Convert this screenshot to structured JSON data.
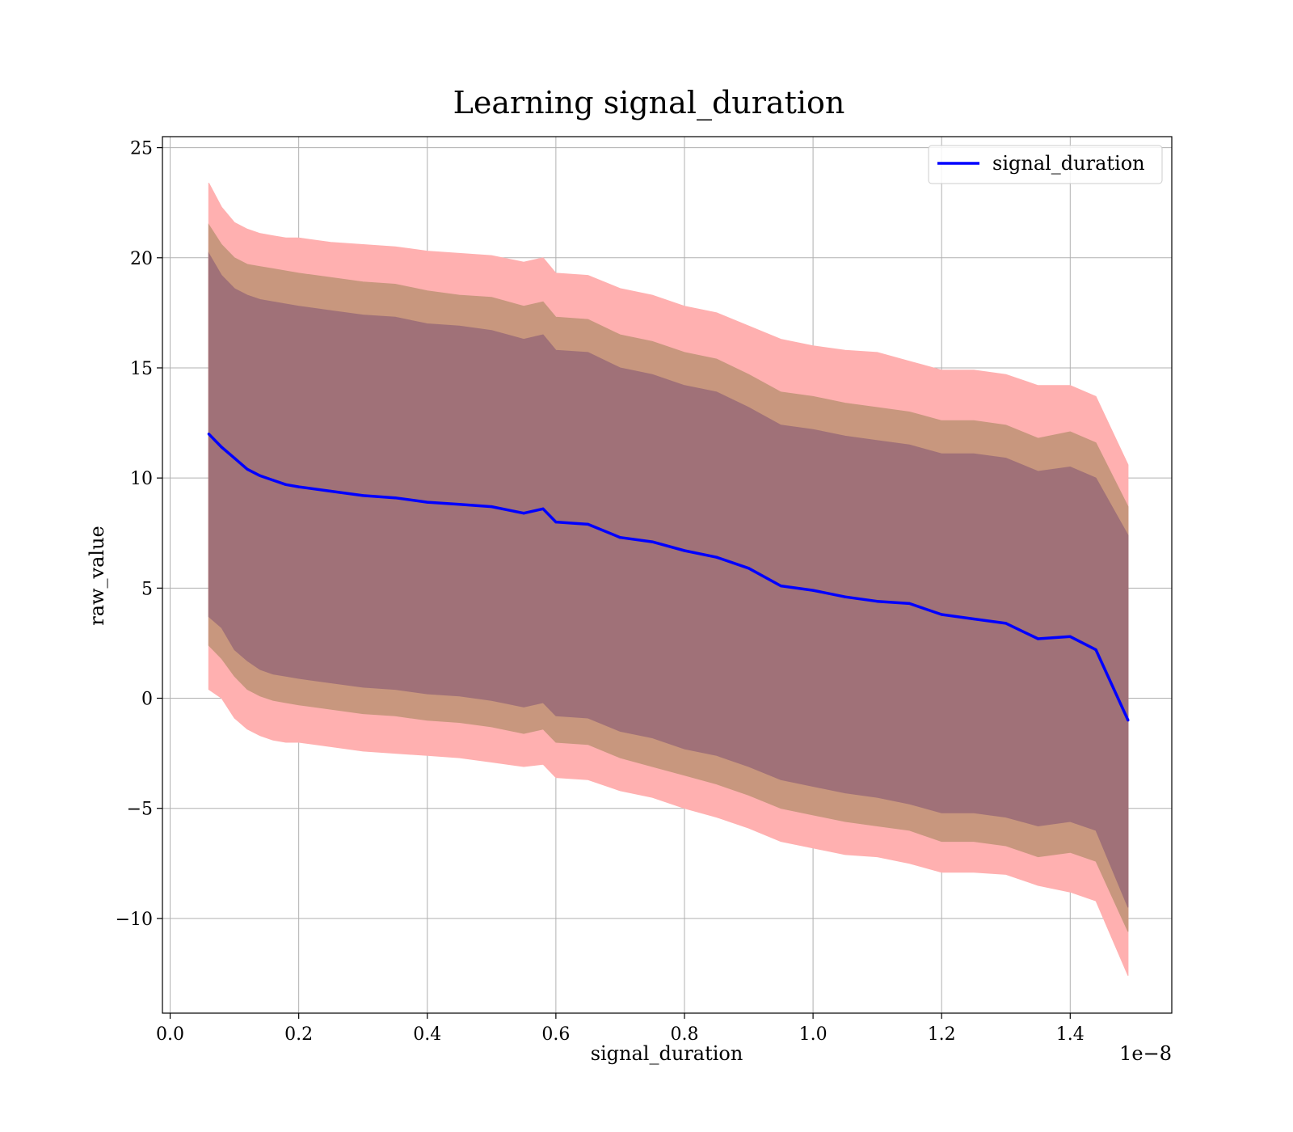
{
  "chart_data": {
    "type": "line",
    "title": "Learning signal_duration",
    "xlabel": "signal_duration",
    "ylabel": "raw_value",
    "x_offset_label": "1e−8",
    "xlim": [
      -0.012,
      1.558
    ],
    "ylim": [
      -14.3,
      25.5
    ],
    "grid": true,
    "legend_position": "top-right",
    "x_ticks": [
      0.0,
      0.2,
      0.4,
      0.6,
      0.8,
      1.0,
      1.2,
      1.4
    ],
    "x_tick_labels": [
      "0.0",
      "0.2",
      "0.4",
      "0.6",
      "0.8",
      "1.0",
      "1.2",
      "1.4"
    ],
    "y_ticks": [
      25,
      20,
      15,
      10,
      5,
      0,
      -5,
      -10
    ],
    "y_tick_labels": [
      "25",
      "20",
      "15",
      "10",
      "5",
      "0",
      "−5",
      "−10"
    ],
    "colors": {
      "line": "#0000ff",
      "band_outer": "#ffb0b0",
      "band_middle": "#c8977e",
      "band_inner": "#a07178",
      "grid": "#b0b0b0"
    },
    "series": [
      {
        "name": "signal_duration",
        "x": [
          0.06,
          0.08,
          0.1,
          0.12,
          0.14,
          0.16,
          0.18,
          0.2,
          0.25,
          0.3,
          0.35,
          0.4,
          0.45,
          0.5,
          0.55,
          0.58,
          0.6,
          0.65,
          0.7,
          0.75,
          0.8,
          0.85,
          0.9,
          0.95,
          1.0,
          1.05,
          1.1,
          1.15,
          1.2,
          1.25,
          1.3,
          1.35,
          1.4,
          1.44,
          1.49
        ],
        "y": [
          12.0,
          11.4,
          10.9,
          10.4,
          10.1,
          9.9,
          9.7,
          9.6,
          9.4,
          9.2,
          9.1,
          8.9,
          8.8,
          8.7,
          8.4,
          8.6,
          8.0,
          7.9,
          7.3,
          7.1,
          6.7,
          6.4,
          5.9,
          5.1,
          4.9,
          4.6,
          4.4,
          4.3,
          3.8,
          3.6,
          3.4,
          2.7,
          2.8,
          2.2,
          -1.0
        ]
      }
    ],
    "bands": [
      {
        "upper": [
          23.4,
          22.3,
          21.6,
          21.3,
          21.1,
          21.0,
          20.9,
          20.9,
          20.7,
          20.6,
          20.5,
          20.3,
          20.2,
          20.1,
          19.8,
          20.0,
          19.3,
          19.2,
          18.6,
          18.3,
          17.8,
          17.5,
          16.9,
          16.3,
          16.0,
          15.8,
          15.7,
          15.3,
          14.9,
          14.9,
          14.7,
          14.2,
          14.2,
          13.7,
          10.6
        ],
        "lower": [
          0.4,
          0.0,
          -0.9,
          -1.4,
          -1.7,
          -1.9,
          -2.0,
          -2.0,
          -2.2,
          -2.4,
          -2.5,
          -2.6,
          -2.7,
          -2.9,
          -3.1,
          -3.0,
          -3.6,
          -3.7,
          -4.2,
          -4.5,
          -5.0,
          -5.4,
          -5.9,
          -6.5,
          -6.8,
          -7.1,
          -7.2,
          -7.5,
          -7.9,
          -7.9,
          -8.0,
          -8.5,
          -8.8,
          -9.2,
          -12.6
        ]
      },
      {
        "upper": [
          21.5,
          20.6,
          20.0,
          19.7,
          19.6,
          19.5,
          19.4,
          19.3,
          19.1,
          18.9,
          18.8,
          18.5,
          18.3,
          18.2,
          17.8,
          18.0,
          17.3,
          17.2,
          16.5,
          16.2,
          15.7,
          15.4,
          14.7,
          13.9,
          13.7,
          13.4,
          13.2,
          13.0,
          12.6,
          12.6,
          12.4,
          11.8,
          12.1,
          11.6,
          8.7
        ],
        "lower": [
          2.4,
          1.8,
          1.0,
          0.4,
          0.1,
          -0.1,
          -0.2,
          -0.3,
          -0.5,
          -0.7,
          -0.8,
          -1.0,
          -1.1,
          -1.3,
          -1.6,
          -1.4,
          -2.0,
          -2.1,
          -2.7,
          -3.1,
          -3.5,
          -3.9,
          -4.4,
          -5.0,
          -5.3,
          -5.6,
          -5.8,
          -6.0,
          -6.5,
          -6.5,
          -6.7,
          -7.2,
          -7.0,
          -7.4,
          -10.6
        ]
      },
      {
        "upper": [
          20.2,
          19.2,
          18.6,
          18.3,
          18.1,
          18.0,
          17.9,
          17.8,
          17.6,
          17.4,
          17.3,
          17.0,
          16.9,
          16.7,
          16.3,
          16.5,
          15.8,
          15.7,
          15.0,
          14.7,
          14.2,
          13.9,
          13.2,
          12.4,
          12.2,
          11.9,
          11.7,
          11.5,
          11.1,
          11.1,
          10.9,
          10.3,
          10.5,
          10.0,
          7.4
        ],
        "lower": [
          3.7,
          3.2,
          2.2,
          1.7,
          1.3,
          1.1,
          1.0,
          0.9,
          0.7,
          0.5,
          0.4,
          0.2,
          0.1,
          -0.1,
          -0.4,
          -0.2,
          -0.8,
          -0.9,
          -1.5,
          -1.8,
          -2.3,
          -2.6,
          -3.1,
          -3.7,
          -4.0,
          -4.3,
          -4.5,
          -4.8,
          -5.2,
          -5.2,
          -5.4,
          -5.8,
          -5.6,
          -6.0,
          -9.5
        ]
      }
    ]
  }
}
